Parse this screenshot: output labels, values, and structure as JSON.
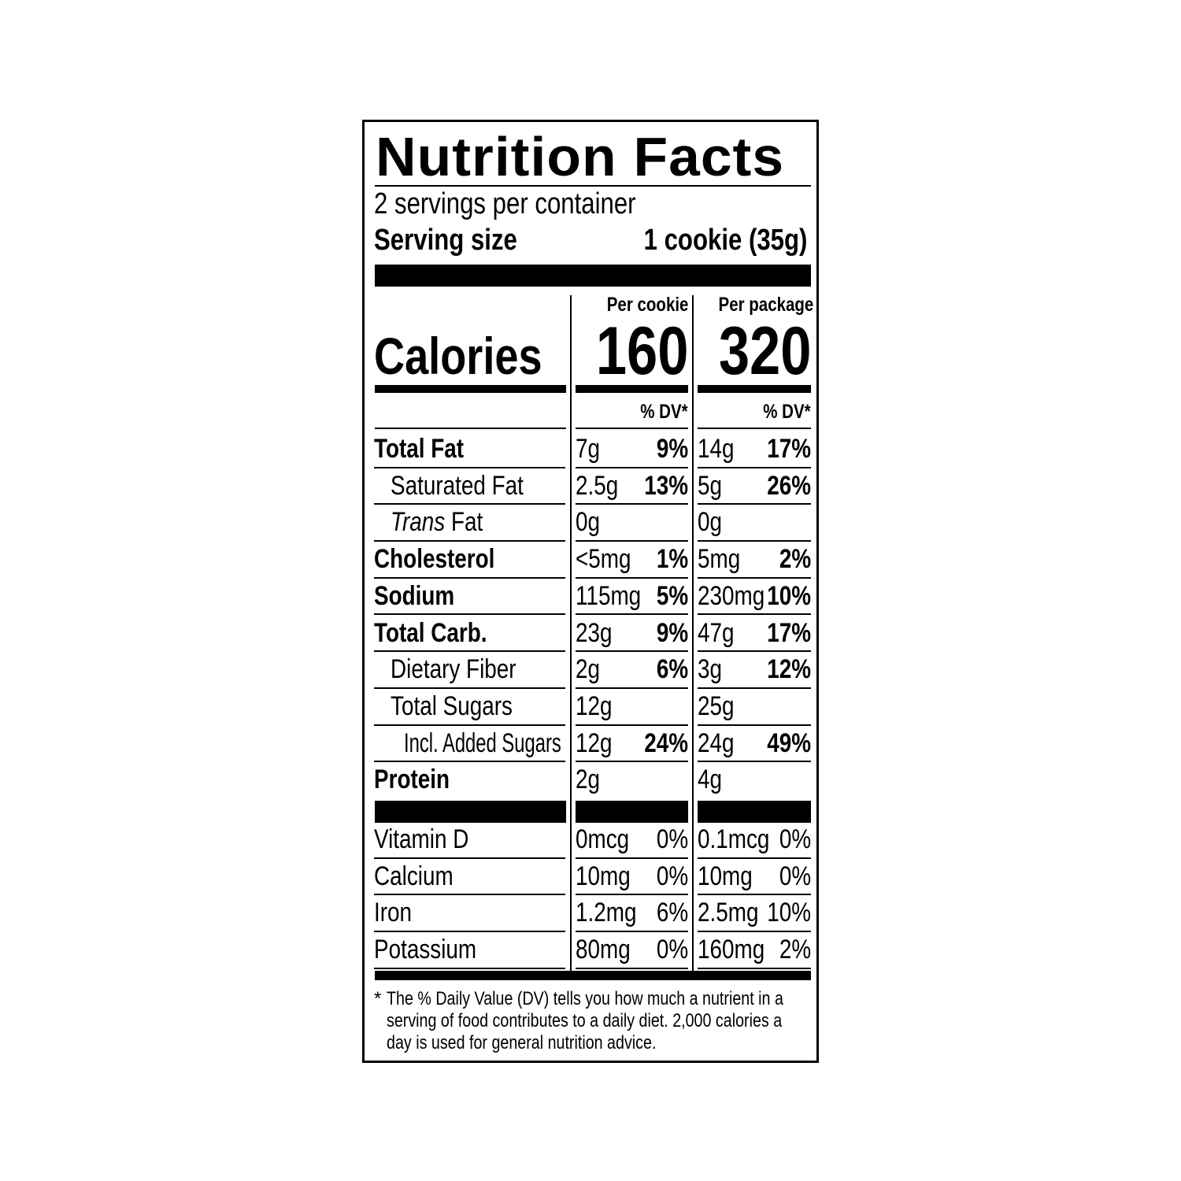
{
  "title": "Nutrition Facts",
  "servings_per_container": "2 servings per container",
  "serving_size_label": "Serving size",
  "serving_size_value": "1 cookie (35g)",
  "calories_label": "Calories",
  "columns": [
    {
      "header": "Per cookie",
      "calories": "160",
      "dv_header": "% DV*"
    },
    {
      "header": "Per package",
      "calories": "320",
      "dv_header": "% DV*"
    }
  ],
  "nutrients": [
    {
      "label": "Total Fat",
      "bold": true,
      "indent": 0,
      "values": [
        {
          "amount": "7g",
          "dv": "9%"
        },
        {
          "amount": "14g",
          "dv": "17%"
        }
      ]
    },
    {
      "label": "Saturated Fat",
      "bold": false,
      "indent": 1,
      "values": [
        {
          "amount": "2.5g",
          "dv": "13%"
        },
        {
          "amount": "5g",
          "dv": "26%"
        }
      ]
    },
    {
      "label_italic": "Trans",
      "label": " Fat",
      "bold": false,
      "indent": 1,
      "values": [
        {
          "amount": "0g",
          "dv": ""
        },
        {
          "amount": "0g",
          "dv": ""
        }
      ]
    },
    {
      "label": "Cholesterol",
      "bold": true,
      "indent": 0,
      "values": [
        {
          "amount": "<5mg",
          "dv": "1%"
        },
        {
          "amount": "5mg",
          "dv": "2%"
        }
      ]
    },
    {
      "label": "Sodium",
      "bold": true,
      "indent": 0,
      "values": [
        {
          "amount": "115mg",
          "dv": "5%"
        },
        {
          "amount": "230mg",
          "dv": "10%"
        }
      ]
    },
    {
      "label": "Total Carb.",
      "bold": true,
      "indent": 0,
      "values": [
        {
          "amount": "23g",
          "dv": "9%"
        },
        {
          "amount": "47g",
          "dv": "17%"
        }
      ]
    },
    {
      "label": "Dietary Fiber",
      "bold": false,
      "indent": 1,
      "values": [
        {
          "amount": "2g",
          "dv": "6%"
        },
        {
          "amount": "3g",
          "dv": "12%"
        }
      ]
    },
    {
      "label": "Total Sugars",
      "bold": false,
      "indent": 1,
      "values": [
        {
          "amount": "12g",
          "dv": ""
        },
        {
          "amount": "25g",
          "dv": ""
        }
      ]
    },
    {
      "label": "Incl. Added Sugars",
      "bold": false,
      "indent": 2,
      "values": [
        {
          "amount": "12g",
          "dv": "24%"
        },
        {
          "amount": "24g",
          "dv": "49%"
        }
      ]
    },
    {
      "label": "Protein",
      "bold": true,
      "indent": 0,
      "noline": true,
      "values": [
        {
          "amount": "2g",
          "dv": ""
        },
        {
          "amount": "4g",
          "dv": ""
        }
      ]
    }
  ],
  "vitamins": [
    {
      "label": "Vitamin D",
      "values": [
        {
          "amount": "0mcg",
          "dv": "0%"
        },
        {
          "amount": "0.1mcg",
          "dv": "0%"
        }
      ]
    },
    {
      "label": "Calcium",
      "values": [
        {
          "amount": "10mg",
          "dv": "0%"
        },
        {
          "amount": "10mg",
          "dv": "0%"
        }
      ]
    },
    {
      "label": "Iron",
      "values": [
        {
          "amount": "1.2mg",
          "dv": "6%"
        },
        {
          "amount": "2.5mg",
          "dv": "10%"
        }
      ]
    },
    {
      "label": "Potassium",
      "values": [
        {
          "amount": "80mg",
          "dv": "0%"
        },
        {
          "amount": "160mg",
          "dv": "2%"
        }
      ]
    }
  ],
  "footnote": {
    "star": "*",
    "text": "The % Daily Value (DV) tells you how much a nutrient in a serving of food contributes to a daily diet. 2,000 calories a day is used for general nutrition advice."
  }
}
